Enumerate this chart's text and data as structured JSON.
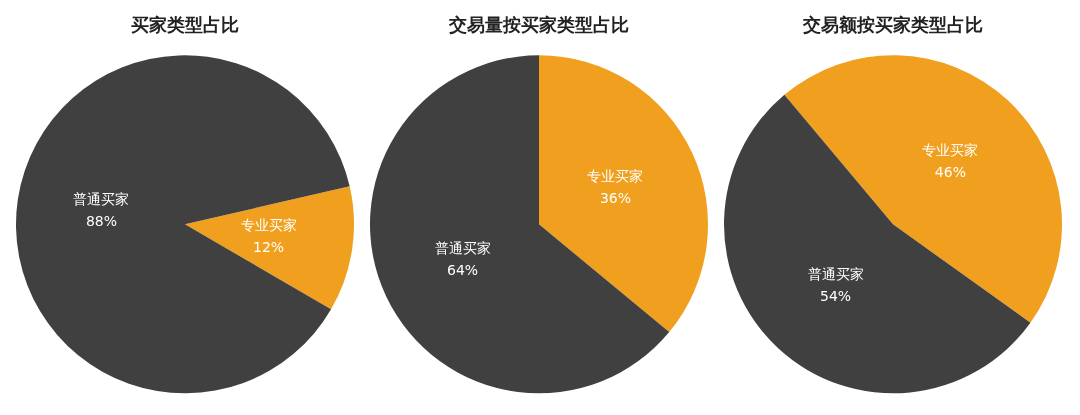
{
  "chart_data": [
    {
      "type": "pie",
      "title": "买家类型占比",
      "categories": [
        "专业买家",
        "普通买家"
      ],
      "values": [
        12,
        88
      ],
      "colors": [
        "#f0a01e",
        "#404040"
      ],
      "value_labels": [
        "12%",
        "88%"
      ]
    },
    {
      "type": "pie",
      "title": "交易量按买家类型占比",
      "categories": [
        "专业买家",
        "普通买家"
      ],
      "values": [
        36,
        64
      ],
      "colors": [
        "#f0a01e",
        "#404040"
      ],
      "value_labels": [
        "36%",
        "64%"
      ]
    },
    {
      "type": "pie",
      "title": "交易额按买家类型占比",
      "categories": [
        "专业买家",
        "普通买家"
      ],
      "values": [
        46,
        54
      ],
      "colors": [
        "#f0a01e",
        "#404040"
      ],
      "value_labels": [
        "46%",
        "54%"
      ]
    }
  ]
}
